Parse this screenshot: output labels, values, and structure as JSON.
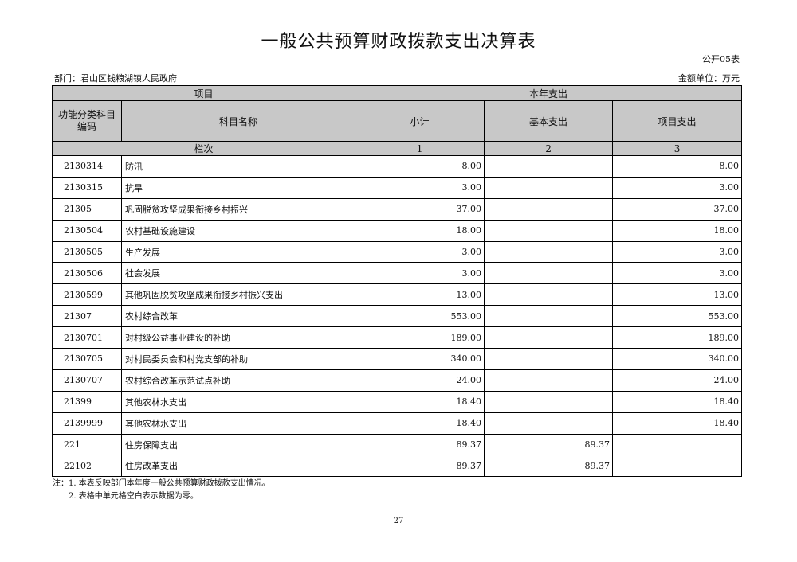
{
  "title": "一般公共预算财政拨款支出决算表",
  "form_no": "公开05表",
  "department": "部门：君山区钱粮湖镇人民政府",
  "unit": "金额单位：万元",
  "header": {
    "item": "项目",
    "current_year": "本年支出",
    "code": "功能分类科目编码",
    "name": "科目名称",
    "subtotal": "小计",
    "basic": "基本支出",
    "project": "项目支出",
    "row_index": "栏次",
    "col1": "1",
    "col2": "2",
    "col3": "3"
  },
  "rows": [
    {
      "code": "2130314",
      "name": "防汛",
      "subtotal": "8.00",
      "basic": "",
      "project": "8.00"
    },
    {
      "code": "2130315",
      "name": "抗旱",
      "subtotal": "3.00",
      "basic": "",
      "project": "3.00"
    },
    {
      "code": "21305",
      "name": "巩固脱贫攻坚成果衔接乡村振兴",
      "subtotal": "37.00",
      "basic": "",
      "project": "37.00"
    },
    {
      "code": "2130504",
      "name": "农村基础设施建设",
      "subtotal": "18.00",
      "basic": "",
      "project": "18.00"
    },
    {
      "code": "2130505",
      "name": "生产发展",
      "subtotal": "3.00",
      "basic": "",
      "project": "3.00"
    },
    {
      "code": "2130506",
      "name": "社会发展",
      "subtotal": "3.00",
      "basic": "",
      "project": "3.00"
    },
    {
      "code": "2130599",
      "name": "其他巩固脱贫攻坚成果衔接乡村振兴支出",
      "subtotal": "13.00",
      "basic": "",
      "project": "13.00"
    },
    {
      "code": "21307",
      "name": "农村综合改革",
      "subtotal": "553.00",
      "basic": "",
      "project": "553.00"
    },
    {
      "code": "2130701",
      "name": "对村级公益事业建设的补助",
      "subtotal": "189.00",
      "basic": "",
      "project": "189.00"
    },
    {
      "code": "2130705",
      "name": "对村民委员会和村党支部的补助",
      "subtotal": "340.00",
      "basic": "",
      "project": "340.00"
    },
    {
      "code": "2130707",
      "name": "农村综合改革示范试点补助",
      "subtotal": "24.00",
      "basic": "",
      "project": "24.00"
    },
    {
      "code": "21399",
      "name": "其他农林水支出",
      "subtotal": "18.40",
      "basic": "",
      "project": "18.40"
    },
    {
      "code": "2139999",
      "name": "其他农林水支出",
      "subtotal": "18.40",
      "basic": "",
      "project": "18.40"
    },
    {
      "code": "221",
      "name": "住房保障支出",
      "subtotal": "89.37",
      "basic": "89.37",
      "project": ""
    },
    {
      "code": "22102",
      "name": "住房改革支出",
      "subtotal": "89.37",
      "basic": "89.37",
      "project": ""
    }
  ],
  "notes": [
    "注：1. 本表反映部门本年度一般公共预算财政拨款支出情况。",
    "2. 表格中单元格空白表示数据为零。"
  ],
  "page_number": "27"
}
